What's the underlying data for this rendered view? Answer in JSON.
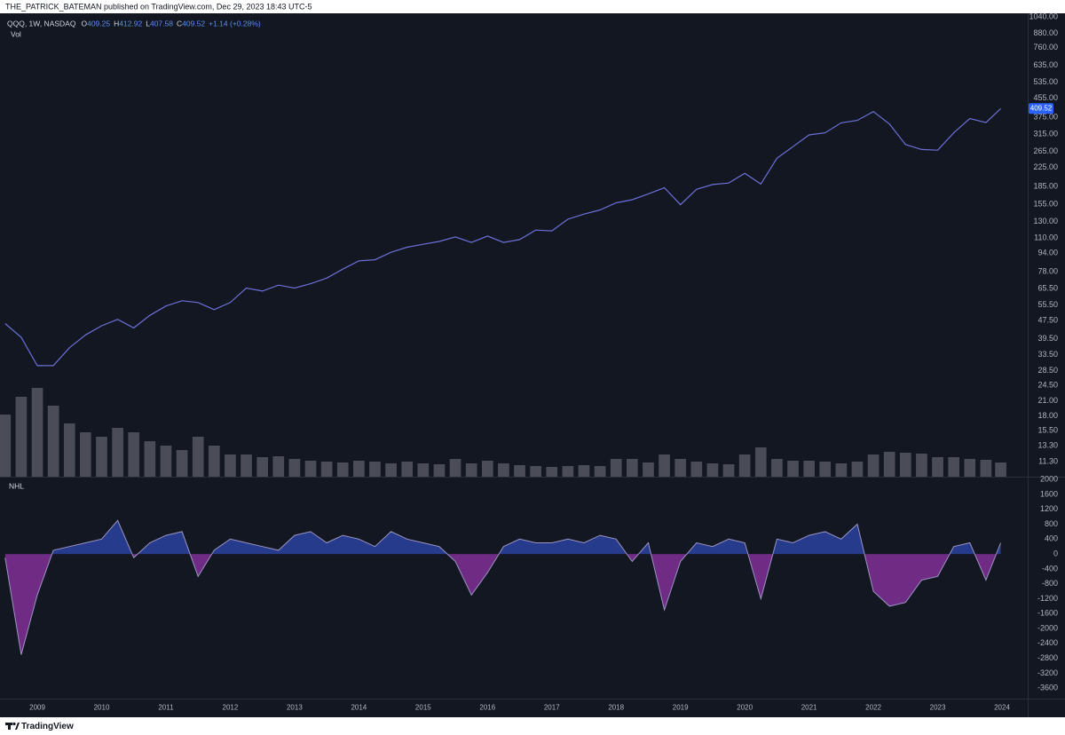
{
  "header": {
    "text": "THE_PATRICK_BATEMAN published on TradingView.com, Dec 29, 2023 18:43 UTC-5"
  },
  "footer": {
    "brand": "TradingView"
  },
  "chart_data": [
    {
      "type": "line",
      "title": "QQQ, 1W, NASDAQ",
      "ohlc_labels": [
        "O",
        "H",
        "L",
        "C"
      ],
      "ohlc": [
        409.25,
        412.92,
        407.58,
        409.52
      ],
      "change": "+1.14 (+0.28%)",
      "log_scale": true,
      "grid": false,
      "xlim": [
        2008.42,
        2024.4
      ],
      "ylim": [
        9.7,
        1078
      ],
      "yticks": [
        {
          "value": 1040,
          "label": "1040.00"
        },
        {
          "value": 880,
          "label": "880.00"
        },
        {
          "value": 760,
          "label": "760.00"
        },
        {
          "value": 635,
          "label": "635.00"
        },
        {
          "value": 535,
          "label": "535.00"
        },
        {
          "value": 455,
          "label": "455.00"
        },
        {
          "value": 375,
          "label": "375.00"
        },
        {
          "value": 315,
          "label": "315.00"
        },
        {
          "value": 265,
          "label": "265.00"
        },
        {
          "value": 225,
          "label": "225.00"
        },
        {
          "value": 185,
          "label": "185.00"
        },
        {
          "value": 155,
          "label": "155.00"
        },
        {
          "value": 130,
          "label": "130.00"
        },
        {
          "value": 110,
          "label": "110.00"
        },
        {
          "value": 94,
          "label": "94.00"
        },
        {
          "value": 78,
          "label": "78.00"
        },
        {
          "value": 65.5,
          "label": "65.50"
        },
        {
          "value": 55.5,
          "label": "55.50"
        },
        {
          "value": 47.5,
          "label": "47.50"
        },
        {
          "value": 39.5,
          "label": "39.50"
        },
        {
          "value": 33.5,
          "label": "33.50"
        },
        {
          "value": 28.5,
          "label": "28.50"
        },
        {
          "value": 24.5,
          "label": "24.50"
        },
        {
          "value": 21,
          "label": "21.00"
        },
        {
          "value": 18,
          "label": "18.00"
        },
        {
          "value": 15.5,
          "label": "15.50"
        },
        {
          "value": 13.3,
          "label": "13.30"
        },
        {
          "value": 11.3,
          "label": "11.30"
        }
      ],
      "x": [
        2008.5,
        2008.75,
        2009.0,
        2009.25,
        2009.5,
        2009.75,
        2010.0,
        2010.25,
        2010.5,
        2010.75,
        2011.0,
        2011.25,
        2011.5,
        2011.75,
        2012.0,
        2012.25,
        2012.5,
        2012.75,
        2013.0,
        2013.25,
        2013.5,
        2013.75,
        2014.0,
        2014.25,
        2014.5,
        2014.75,
        2015.0,
        2015.25,
        2015.5,
        2015.75,
        2016.0,
        2016.25,
        2016.5,
        2016.75,
        2017.0,
        2017.25,
        2017.5,
        2017.75,
        2018.0,
        2018.25,
        2018.5,
        2018.75,
        2019.0,
        2019.25,
        2019.5,
        2019.75,
        2020.0,
        2020.25,
        2020.5,
        2020.75,
        2021.0,
        2021.25,
        2021.5,
        2021.75,
        2022.0,
        2022.25,
        2022.5,
        2022.75,
        2023.0,
        2023.25,
        2023.5,
        2023.75,
        2023.98
      ],
      "series": [
        {
          "name": "QQQ",
          "color": "#6c6fd6",
          "values": [
            46,
            40,
            30,
            30,
            36,
            41,
            45,
            48,
            44,
            50,
            55,
            58,
            57,
            53,
            57,
            66,
            64,
            68,
            66,
            69,
            73,
            80,
            87,
            88,
            95,
            100,
            103,
            106,
            111,
            105,
            112,
            105,
            108,
            119,
            118,
            133,
            140,
            146,
            157,
            162,
            172,
            183,
            154,
            180,
            189,
            192,
            212,
            190,
            247,
            278,
            313,
            320,
            354,
            363,
            397,
            350,
            284,
            270,
            268,
            320,
            370,
            355,
            409.52
          ]
        }
      ],
      "last_price_color": "#2962ff"
    },
    {
      "type": "bar",
      "title": "Vol",
      "xlim": [
        2008.42,
        2024.4
      ],
      "x": [
        2008.5,
        2008.75,
        2009.0,
        2009.25,
        2009.5,
        2009.75,
        2010.0,
        2010.25,
        2010.5,
        2010.75,
        2011.0,
        2011.25,
        2011.5,
        2011.75,
        2012.0,
        2012.25,
        2012.5,
        2012.75,
        2013.0,
        2013.25,
        2013.5,
        2013.75,
        2014.0,
        2014.25,
        2014.5,
        2014.75,
        2015.0,
        2015.25,
        2015.5,
        2015.75,
        2016.0,
        2016.25,
        2016.5,
        2016.75,
        2017.0,
        2017.25,
        2017.5,
        2017.75,
        2018.0,
        2018.25,
        2018.5,
        2018.75,
        2019.0,
        2019.25,
        2019.5,
        2019.75,
        2020.0,
        2020.25,
        2020.5,
        2020.75,
        2021.0,
        2021.25,
        2021.5,
        2021.75,
        2022.0,
        2022.25,
        2022.5,
        2022.75,
        2023.0,
        2023.25,
        2023.5,
        2023.75,
        2023.98
      ],
      "color": "#5d606b",
      "values": [
        700,
        900,
        1000,
        800,
        600,
        500,
        450,
        550,
        500,
        400,
        350,
        300,
        450,
        350,
        250,
        250,
        220,
        230,
        200,
        180,
        170,
        160,
        180,
        170,
        150,
        170,
        150,
        140,
        200,
        150,
        180,
        150,
        130,
        120,
        110,
        120,
        130,
        120,
        200,
        200,
        160,
        250,
        200,
        170,
        150,
        140,
        250,
        330,
        200,
        180,
        180,
        170,
        150,
        170,
        250,
        280,
        270,
        260,
        220,
        220,
        200,
        190,
        160
      ]
    },
    {
      "type": "area",
      "title": "NHL",
      "xlim": [
        2008.42,
        2024.4
      ],
      "xticks": [
        2009,
        2010,
        2011,
        2012,
        2013,
        2014,
        2015,
        2016,
        2017,
        2018,
        2019,
        2020,
        2021,
        2022,
        2023,
        2024
      ],
      "ylim": [
        -3880,
        2050
      ],
      "yticks": [
        2000,
        1600,
        1200,
        800,
        400,
        0,
        -400,
        -800,
        -1200,
        -1600,
        -2000,
        -2400,
        -2800,
        -3200,
        -3600
      ],
      "x": [
        2008.5,
        2008.75,
        2009.0,
        2009.25,
        2009.5,
        2009.75,
        2010.0,
        2010.25,
        2010.5,
        2010.75,
        2011.0,
        2011.25,
        2011.5,
        2011.75,
        2012.0,
        2012.25,
        2012.5,
        2012.75,
        2013.0,
        2013.25,
        2013.5,
        2013.75,
        2014.0,
        2014.25,
        2014.5,
        2014.75,
        2015.0,
        2015.25,
        2015.5,
        2015.75,
        2016.0,
        2016.25,
        2016.5,
        2016.75,
        2017.0,
        2017.25,
        2017.5,
        2017.75,
        2018.0,
        2018.25,
        2018.5,
        2018.75,
        2019.0,
        2019.25,
        2019.5,
        2019.75,
        2020.0,
        2020.25,
        2020.5,
        2020.75,
        2021.0,
        2021.25,
        2021.5,
        2021.75,
        2022.0,
        2022.25,
        2022.5,
        2022.75,
        2023.0,
        2023.25,
        2023.5,
        2023.75,
        2023.98
      ],
      "line_color": "#9a94c2",
      "positive_color": "#2a3f99",
      "negative_color": "#7b2f8f",
      "values": [
        -100,
        -2700,
        -1100,
        100,
        200,
        300,
        400,
        900,
        -100,
        300,
        500,
        600,
        -600,
        100,
        400,
        300,
        200,
        100,
        500,
        600,
        300,
        500,
        400,
        200,
        600,
        400,
        300,
        200,
        -200,
        -1100,
        -500,
        200,
        400,
        300,
        300,
        400,
        300,
        500,
        400,
        -200,
        300,
        -1500,
        -200,
        300,
        200,
        400,
        300,
        -1200,
        400,
        300,
        500,
        600,
        400,
        800,
        -1000,
        -1400,
        -1300,
        -700,
        -600,
        200,
        300,
        -700,
        300
      ]
    }
  ]
}
